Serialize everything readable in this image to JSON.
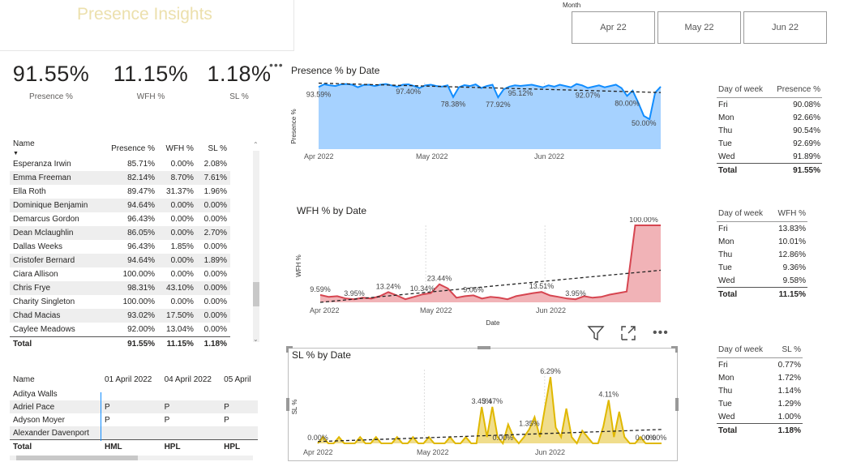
{
  "header": {
    "title": "Presence Insights"
  },
  "slicer": {
    "label": "Month",
    "options": [
      "Apr 22",
      "May 22",
      "Jun 22"
    ]
  },
  "kpis": [
    {
      "value": "91.55%",
      "label": "Presence %"
    },
    {
      "value": "11.15%",
      "label": "WFH %"
    },
    {
      "value": "1.18%",
      "label": "SL %"
    }
  ],
  "icons": {
    "more": "ellipsis-icon",
    "filter": "filter-icon",
    "focus": "focus-mode-icon"
  },
  "colors": {
    "presence": "#118dff",
    "presence_fill": "#a6d2ff",
    "wfh": "#d64550",
    "wfh_fill": "#f1b3b7",
    "sl": "#e0b800",
    "sl_fill": "#f0dd8c"
  },
  "name_table": {
    "headers": [
      "Name",
      "Presence %",
      "WFH %",
      "SL %"
    ],
    "rows": [
      [
        "Esperanza Irwin",
        "85.71%",
        "0.00%",
        "2.08%"
      ],
      [
        "Emma Freeman",
        "82.14%",
        "8.70%",
        "7.61%"
      ],
      [
        "Ella Roth",
        "89.47%",
        "31.37%",
        "1.96%"
      ],
      [
        "Dominique Benjamin",
        "94.64%",
        "0.00%",
        "0.00%"
      ],
      [
        "Demarcus Gordon",
        "96.43%",
        "0.00%",
        "0.00%"
      ],
      [
        "Dean Mclaughlin",
        "86.05%",
        "0.00%",
        "2.70%"
      ],
      [
        "Dallas Weeks",
        "96.43%",
        "1.85%",
        "0.00%"
      ],
      [
        "Cristofer Bernard",
        "94.64%",
        "0.00%",
        "1.89%"
      ],
      [
        "Ciara Allison",
        "100.00%",
        "0.00%",
        "0.00%"
      ],
      [
        "Chris Frye",
        "98.31%",
        "43.10%",
        "0.00%"
      ],
      [
        "Charity Singleton",
        "100.00%",
        "0.00%",
        "0.00%"
      ],
      [
        "Chad Macias",
        "93.02%",
        "17.50%",
        "0.00%"
      ],
      [
        "Caylee Meadows",
        "92.00%",
        "13.04%",
        "0.00%"
      ]
    ],
    "total": [
      "Total",
      "91.55%",
      "11.15%",
      "1.18%"
    ]
  },
  "matrix": {
    "headers": [
      "Name",
      "01 April 2022",
      "04 April 2022",
      "05 April"
    ],
    "rows": [
      [
        "Aditya Walls",
        "",
        "",
        ""
      ],
      [
        "Adriel Pace",
        "P",
        "P",
        "P"
      ],
      [
        "Adyson Moyer",
        "P",
        "P",
        "P"
      ],
      [
        "Alexander Davenport",
        "",
        "",
        ""
      ]
    ],
    "total": [
      "Total",
      "HML",
      "HPL",
      "HPL"
    ]
  },
  "dow_tables": [
    {
      "headers": [
        "Day of week",
        "Presence %"
      ],
      "rows": [
        [
          "Fri",
          "90.08%"
        ],
        [
          "Mon",
          "92.66%"
        ],
        [
          "Thu",
          "90.54%"
        ],
        [
          "Tue",
          "92.69%"
        ],
        [
          "Wed",
          "91.89%"
        ]
      ],
      "total": [
        "Total",
        "91.55%"
      ]
    },
    {
      "headers": [
        "Day of week",
        "WFH %"
      ],
      "rows": [
        [
          "Fri",
          "13.83%"
        ],
        [
          "Mon",
          "10.01%"
        ],
        [
          "Thu",
          "12.86%"
        ],
        [
          "Tue",
          "9.36%"
        ],
        [
          "Wed",
          "9.58%"
        ]
      ],
      "total": [
        "Total",
        "11.15%"
      ]
    },
    {
      "headers": [
        "Day of week",
        "SL %"
      ],
      "rows": [
        [
          "Fri",
          "0.77%"
        ],
        [
          "Mon",
          "1.72%"
        ],
        [
          "Thu",
          "1.14%"
        ],
        [
          "Tue",
          "1.29%"
        ],
        [
          "Wed",
          "1.00%"
        ]
      ],
      "total": [
        "Total",
        "1.18%"
      ]
    }
  ],
  "chart_data": [
    {
      "type": "area",
      "title": "Presence % by Date",
      "xlabel": "",
      "ylabel": "Presence %",
      "x_ticks": [
        "Apr 2022",
        "May 2022",
        "Jun 2022"
      ],
      "ylim": [
        0,
        100
      ],
      "trendline": true,
      "series": [
        {
          "values": [
            93.59,
            97.5,
            96,
            95,
            97.4,
            98,
            97,
            93,
            96.5,
            97,
            95,
            97,
            98,
            96,
            94,
            97,
            97.5,
            95,
            92,
            96,
            97,
            95,
            94,
            96,
            78.38,
            93,
            96.4,
            95,
            97.4,
            92,
            95,
            97,
            77.92,
            90,
            94,
            96,
            95.12,
            96,
            97,
            95,
            93,
            96,
            94,
            97,
            95,
            93,
            98,
            96,
            92.07,
            94,
            96,
            93,
            95,
            97,
            92,
            80,
            88,
            70,
            50,
            45,
            85,
            94
          ],
          "labels": [
            "93.59%",
            "97.40%",
            "78.38%",
            "77.92%",
            "95.12%",
            "92.07%",
            "80.00%",
            "50.00%"
          ]
        }
      ]
    },
    {
      "type": "area",
      "title": "WFH % by Date",
      "xlabel": "Date",
      "ylabel": "WFH %",
      "x_ticks": [
        "Apr 2022",
        "May 2022",
        "Jun 2022"
      ],
      "ylim": [
        0,
        100
      ],
      "trendline": true,
      "series": [
        {
          "values": [
            9.59,
            7,
            8,
            5,
            3.95,
            6,
            5,
            8,
            13.24,
            9,
            4,
            7,
            10.34,
            12,
            23.44,
            18,
            6,
            8,
            9.06,
            5,
            7,
            6,
            4,
            8,
            10,
            12,
            13.51,
            9,
            7,
            5,
            3.95,
            8,
            6,
            7,
            10,
            12,
            14,
            100,
            100,
            100,
            100
          ],
          "labels": [
            "9.59%",
            "3.95%",
            "13.24%",
            "10.34%",
            "23.44%",
            "9.06%",
            "13.51%",
            "3.95%",
            "100.00%"
          ]
        }
      ]
    },
    {
      "type": "area",
      "title": "SL % by Date",
      "xlabel": "",
      "ylabel": "SL %",
      "x_ticks": [
        "Apr 2022",
        "May 2022",
        "Jun 2022"
      ],
      "ylim": [
        0,
        7
      ],
      "trendline": true,
      "series": [
        {
          "values": [
            0.0,
            0.6,
            0.0,
            0.0,
            0.6,
            0.0,
            0.0,
            0.0,
            0.6,
            0.0,
            0.0,
            0.6,
            0.0,
            0.0,
            0.0,
            0.6,
            0.0,
            0.0,
            0.6,
            0.0,
            0.0,
            0.6,
            0.0,
            0.0,
            0.0,
            0.6,
            0.0,
            0.0,
            0.6,
            0.0,
            0.0,
            3.45,
            0.6,
            3.47,
            0.6,
            0.0,
            1.8,
            0.6,
            0.0,
            0.6,
            1.35,
            2.5,
            0.6,
            3.5,
            6.29,
            1.5,
            0.6,
            3.3,
            0.6,
            0.0,
            1.2,
            0.6,
            0.0,
            0.0,
            1.6,
            4.11,
            0.6,
            3.0,
            0.6,
            0.0,
            0.0,
            0.6,
            0.0,
            0.0,
            0.0,
            0.0
          ],
          "labels": [
            "0.00%",
            "3.45%",
            "3.47%",
            "0.00%",
            "1.35%",
            "6.29%",
            "4.11%",
            "0.00%",
            "0.00%"
          ]
        }
      ]
    }
  ]
}
